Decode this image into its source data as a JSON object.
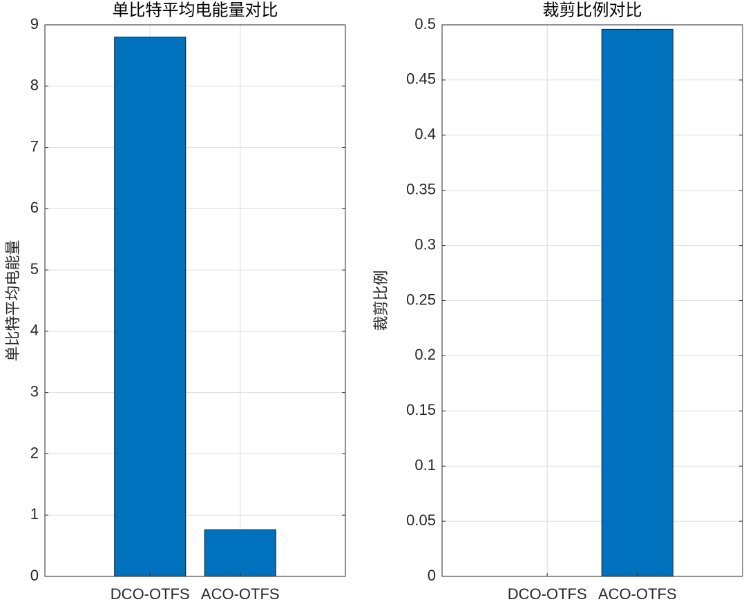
{
  "chart_data": [
    {
      "type": "bar",
      "title": "单比特平均电能量对比",
      "y_label": "单比特平均电能量",
      "categories": [
        "DCO-OTFS",
        "ACO-OTFS"
      ],
      "values": [
        8.8,
        0.76
      ],
      "color": "#0072bd",
      "ylim": [
        0,
        9
      ],
      "yticks": [
        0,
        1,
        2,
        3,
        4,
        5,
        6,
        7,
        8,
        9
      ],
      "grid": true
    },
    {
      "type": "bar",
      "title": "裁剪比例对比",
      "y_label": "裁剪比例",
      "categories": [
        "DCO-OTFS",
        "ACO-OTFS"
      ],
      "values": [
        0,
        0.496
      ],
      "color": "#0072bd",
      "ylim": [
        0,
        0.5
      ],
      "yticks": [
        0,
        0.05,
        0.1,
        0.15,
        0.2,
        0.25,
        0.3,
        0.35,
        0.4,
        0.45,
        0.5
      ],
      "grid": true
    }
  ]
}
